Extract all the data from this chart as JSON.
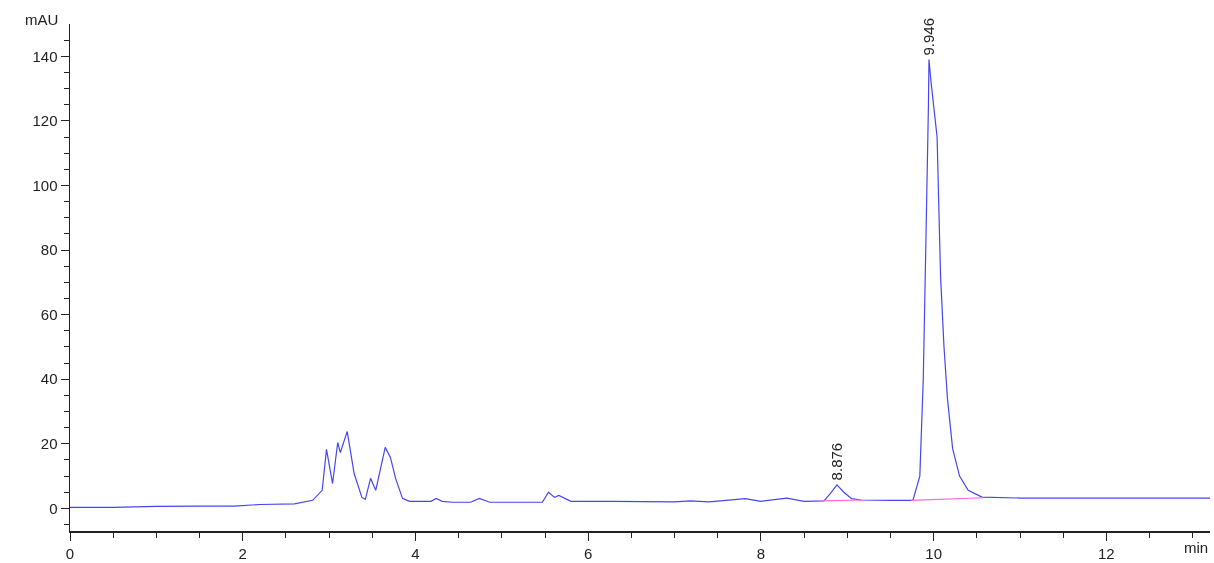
{
  "chart_data": {
    "type": "line",
    "ylabel": "mAU",
    "xlabel": "min",
    "xlim": [
      0,
      13.2
    ],
    "ylim": [
      -7,
      150
    ],
    "xticks": [
      0,
      2,
      4,
      6,
      8,
      10,
      12,
      {
        "value": 0.5,
        "label": null
      },
      {
        "value": 1,
        "label": null
      },
      {
        "value": 1.5,
        "label": null
      },
      {
        "value": 2.5,
        "label": null
      },
      {
        "value": 3,
        "label": null
      },
      {
        "value": 3.5,
        "label": null
      },
      {
        "value": 4.5,
        "label": null
      },
      {
        "value": 5,
        "label": null
      },
      {
        "value": 5.5,
        "label": null
      },
      {
        "value": 6.5,
        "label": null
      },
      {
        "value": 7,
        "label": null
      },
      {
        "value": 7.5,
        "label": null
      },
      {
        "value": 8.5,
        "label": null
      },
      {
        "value": 9,
        "label": null
      },
      {
        "value": 9.5,
        "label": null
      },
      {
        "value": 10.5,
        "label": null
      },
      {
        "value": 11,
        "label": null
      },
      {
        "value": 11.5,
        "label": null
      },
      {
        "value": 12.5,
        "label": null
      },
      {
        "value": 13,
        "label": null
      }
    ],
    "yticks": [
      0,
      20,
      40,
      60,
      80,
      100,
      120,
      140,
      {
        "value": -5,
        "label": null
      },
      {
        "value": 5,
        "label": null
      },
      {
        "value": 10,
        "label": null
      },
      {
        "value": 15,
        "label": null
      },
      {
        "value": 25,
        "label": null
      },
      {
        "value": 30,
        "label": null
      },
      {
        "value": 35,
        "label": null
      },
      {
        "value": 45,
        "label": null
      },
      {
        "value": 50,
        "label": null
      },
      {
        "value": 55,
        "label": null
      },
      {
        "value": 65,
        "label": null
      },
      {
        "value": 70,
        "label": null
      },
      {
        "value": 75,
        "label": null
      },
      {
        "value": 85,
        "label": null
      },
      {
        "value": 90,
        "label": null
      },
      {
        "value": 95,
        "label": null
      },
      {
        "value": 105,
        "label": null
      },
      {
        "value": 110,
        "label": null
      },
      {
        "value": 115,
        "label": null
      },
      {
        "value": 125,
        "label": null
      },
      {
        "value": 130,
        "label": null
      },
      {
        "value": 135,
        "label": null
      },
      {
        "value": 145,
        "label": null
      }
    ],
    "grid": false,
    "marker": "none",
    "line_style": "solid",
    "series": [
      {
        "color": "#4646f0",
        "x": [
          0,
          0.5,
          1,
          1.5,
          1.9,
          2.2,
          2.6,
          2.81,
          2.92,
          2.97,
          3.04,
          3.1,
          3.13,
          3.21,
          3.29,
          3.38,
          3.42,
          3.48,
          3.54,
          3.65,
          3.71,
          3.77,
          3.85,
          3.93,
          4.18,
          4.24,
          4.31,
          4.43,
          4.64,
          4.74,
          4.86,
          5.47,
          5.54,
          5.61,
          5.66,
          5.8,
          6.28,
          7.0,
          7.18,
          7.4,
          7.82,
          8.0,
          8.3,
          8.5,
          8.73,
          8.8,
          8.88,
          8.96,
          9.05,
          9.16,
          9.5,
          9.76,
          9.84,
          9.88,
          9.91,
          9.94,
          9.946,
          9.97,
          10.04,
          10.08,
          10.12,
          10.16,
          10.22,
          10.3,
          10.4,
          10.56,
          11,
          12,
          13.2
        ],
        "values": [
          0.3,
          0.3,
          0.6,
          0.7,
          0.7,
          1.2,
          1.4,
          2.5,
          5.6,
          18.3,
          7.7,
          20.4,
          17.3,
          23.8,
          10.8,
          3.4,
          2.8,
          9.3,
          5.6,
          18.9,
          15.8,
          9.3,
          3.1,
          2.2,
          2.2,
          3.1,
          2.2,
          1.9,
          1.9,
          3.1,
          1.9,
          1.9,
          5.0,
          3.4,
          4.0,
          2.2,
          2.2,
          2.0,
          2.3,
          2.0,
          3.0,
          2.2,
          3.2,
          2.2,
          2.3,
          4.5,
          7.3,
          5.0,
          3.0,
          2.6,
          2.5,
          2.5,
          10,
          40,
          82,
          125,
          139,
          132,
          115,
          72,
          50,
          34,
          18.5,
          10,
          5.6,
          3.5,
          3.2,
          3.2,
          3.2
        ]
      },
      {
        "color": "#ff66dd",
        "x": [
          8.73,
          9.16,
          9.2,
          9.74,
          10.57
        ],
        "values": [
          2.3,
          2.6,
          null,
          2.5,
          3.3
        ]
      }
    ],
    "annotations": [
      {
        "text": "8.876",
        "x": 8.876,
        "y": 7.3
      },
      {
        "text": "9.946",
        "x": 9.946,
        "y": 139
      }
    ]
  }
}
